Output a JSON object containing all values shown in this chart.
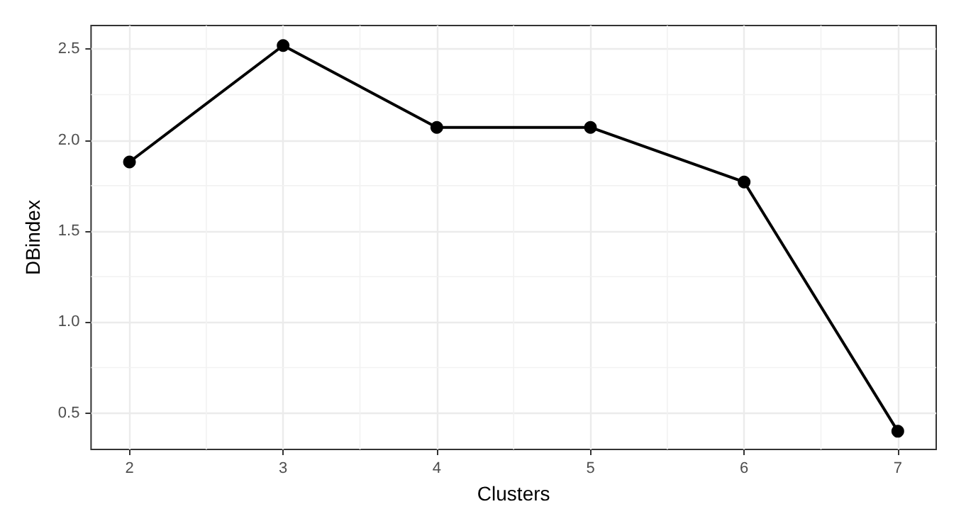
{
  "chart_data": {
    "type": "line",
    "xlabel": "Clusters",
    "ylabel": "DBindex",
    "x": [
      2,
      3,
      4,
      5,
      6,
      7
    ],
    "values": [
      1.88,
      2.52,
      2.07,
      2.07,
      1.77,
      0.4
    ],
    "color": "#000000",
    "xlim": [
      1.75,
      7.25
    ],
    "xticks": [
      2,
      3,
      4,
      5,
      6,
      7
    ],
    "ylim": [
      0.3,
      2.63
    ],
    "yticks": [
      {
        "value": 0.5,
        "label": "0.5"
      },
      {
        "value": 1,
        "label": "1.0"
      },
      {
        "value": 1.5,
        "label": "1.5"
      },
      {
        "value": 2,
        "label": "2.0"
      },
      {
        "value": 2.5,
        "label": "2.5"
      }
    ],
    "grid": true,
    "marker": "circle",
    "line_style": "solid"
  }
}
